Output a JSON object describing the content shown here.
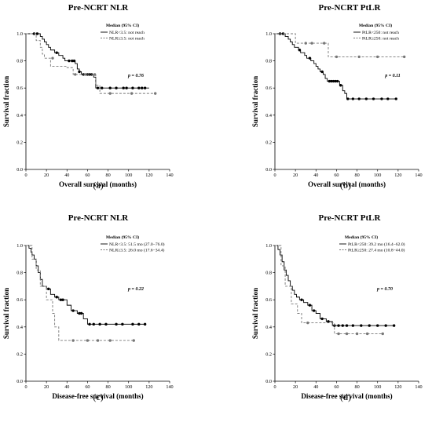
{
  "chart_data": [
    {
      "type": "line",
      "subtype": "kaplan-meier",
      "title": "Pre-NCRT NLR",
      "xlabel": "Overall survival (months)",
      "ylabel": "Survival fraction",
      "xlim": [
        0,
        140
      ],
      "ylim": [
        0,
        1.0
      ],
      "xticks": [
        "0",
        "20",
        "40",
        "60",
        "80",
        "100",
        "120",
        "140"
      ],
      "yticks": [
        "0.0",
        "0.2",
        "0.4",
        "0.6",
        "0.8",
        "1.0"
      ],
      "legend_title": "Median (95% CI)",
      "legend_position": "top-right",
      "p_value": "p = 0.76",
      "panel_label": "(a)",
      "grid": false,
      "series": [
        {
          "name": "NLR<3.5: not reach",
          "style": "solid",
          "color": "#000000",
          "steps": [
            [
              0,
              1.0
            ],
            [
              14,
              0.98
            ],
            [
              16,
              0.96
            ],
            [
              18,
              0.94
            ],
            [
              20,
              0.92
            ],
            [
              22,
              0.9
            ],
            [
              24,
              0.88
            ],
            [
              28,
              0.86
            ],
            [
              32,
              0.84
            ],
            [
              36,
              0.82
            ],
            [
              38,
              0.8
            ],
            [
              48,
              0.78
            ],
            [
              50,
              0.74
            ],
            [
              52,
              0.72
            ],
            [
              54,
              0.7
            ],
            [
              66,
              0.68
            ],
            [
              68,
              0.6
            ],
            [
              120,
              0.6
            ]
          ],
          "censored": [
            [
              8,
              1.0
            ],
            [
              11,
              1.0
            ],
            [
              30,
              0.86
            ],
            [
              42,
              0.8
            ],
            [
              45,
              0.8
            ],
            [
              47,
              0.8
            ],
            [
              52,
              0.72
            ],
            [
              56,
              0.7
            ],
            [
              60,
              0.7
            ],
            [
              62,
              0.7
            ],
            [
              64,
              0.7
            ],
            [
              70,
              0.6
            ],
            [
              74,
              0.6
            ],
            [
              82,
              0.6
            ],
            [
              88,
              0.6
            ],
            [
              95,
              0.6
            ],
            [
              98,
              0.6
            ],
            [
              104,
              0.6
            ],
            [
              110,
              0.6
            ],
            [
              113,
              0.6
            ],
            [
              116,
              0.6
            ]
          ]
        },
        {
          "name": "NLR≥3.5: not reach",
          "style": "dashed",
          "color": "#777777",
          "steps": [
            [
              0,
              1.0
            ],
            [
              10,
              0.95
            ],
            [
              14,
              0.9
            ],
            [
              16,
              0.85
            ],
            [
              18,
              0.82
            ],
            [
              24,
              0.76
            ],
            [
              32,
              0.76
            ],
            [
              40,
              0.75
            ],
            [
              46,
              0.7
            ],
            [
              60,
              0.7
            ],
            [
              68,
              0.62
            ],
            [
              72,
              0.56
            ],
            [
              126,
              0.56
            ]
          ],
          "censored": [
            [
              26,
              0.82
            ],
            [
              48,
              0.7
            ],
            [
              58,
              0.7
            ],
            [
              67,
              0.7
            ],
            [
              82,
              0.56
            ],
            [
              103,
              0.56
            ],
            [
              126,
              0.56
            ]
          ]
        }
      ]
    },
    {
      "type": "line",
      "subtype": "kaplan-meier",
      "title": "Pre-NCRT PtLR",
      "xlabel": "Overall survival (months)",
      "ylabel": "Survival fraction",
      "xlim": [
        0,
        140
      ],
      "ylim": [
        0,
        1.0
      ],
      "xticks": [
        "0",
        "20",
        "40",
        "60",
        "80",
        "100",
        "120",
        "140"
      ],
      "yticks": [
        "0.0",
        "0.2",
        "0.4",
        "0.6",
        "0.8",
        "1.0"
      ],
      "legend_title": "Median (95% CI)",
      "legend_position": "top-right",
      "p_value": "p = 0.11",
      "panel_label": "(b)",
      "grid": false,
      "series": [
        {
          "name": "PtLR<250: not reach",
          "style": "solid",
          "color": "#000000",
          "steps": [
            [
              0,
              1.0
            ],
            [
              10,
              0.98
            ],
            [
              13,
              0.96
            ],
            [
              15,
              0.94
            ],
            [
              17,
              0.92
            ],
            [
              19,
              0.9
            ],
            [
              23,
              0.88
            ],
            [
              25,
              0.86
            ],
            [
              29,
              0.84
            ],
            [
              31,
              0.82
            ],
            [
              35,
              0.8
            ],
            [
              38,
              0.78
            ],
            [
              40,
              0.76
            ],
            [
              42,
              0.74
            ],
            [
              44,
              0.72
            ],
            [
              47,
              0.7
            ],
            [
              49,
              0.67
            ],
            [
              51,
              0.65
            ],
            [
              63,
              0.62
            ],
            [
              66,
              0.58
            ],
            [
              68,
              0.56
            ],
            [
              70,
              0.52
            ],
            [
              118,
              0.52
            ]
          ],
          "censored": [
            [
              5,
              1.0
            ],
            [
              8,
              1.0
            ],
            [
              24,
              0.88
            ],
            [
              34,
              0.82
            ],
            [
              46,
              0.72
            ],
            [
              53,
              0.65
            ],
            [
              55,
              0.65
            ],
            [
              57,
              0.65
            ],
            [
              59,
              0.65
            ],
            [
              61,
              0.65
            ],
            [
              64,
              0.62
            ],
            [
              71,
              0.52
            ],
            [
              76,
              0.52
            ],
            [
              82,
              0.52
            ],
            [
              89,
              0.52
            ],
            [
              96,
              0.52
            ],
            [
              104,
              0.52
            ],
            [
              110,
              0.52
            ],
            [
              118,
              0.52
            ]
          ]
        },
        {
          "name": "PtLR≥250: not reach",
          "style": "dashed",
          "color": "#777777",
          "steps": [
            [
              0,
              1.0
            ],
            [
              20,
              0.93
            ],
            [
              52,
              0.83
            ],
            [
              126,
              0.83
            ]
          ],
          "censored": [
            [
              30,
              0.93
            ],
            [
              36,
              0.93
            ],
            [
              48,
              0.93
            ],
            [
              60,
              0.83
            ],
            [
              82,
              0.83
            ],
            [
              100,
              0.83
            ],
            [
              126,
              0.83
            ]
          ]
        }
      ]
    },
    {
      "type": "line",
      "subtype": "kaplan-meier",
      "title": "Pre-NCRT NLR",
      "xlabel": "Disease-free survival (months)",
      "ylabel": "Survival fraction",
      "xlim": [
        0,
        140
      ],
      "ylim": [
        0,
        1.0
      ],
      "xticks": [
        "0",
        "20",
        "40",
        "60",
        "80",
        "100",
        "120",
        "140"
      ],
      "yticks": [
        "0.0",
        "0.2",
        "0.4",
        "0.6",
        "0.8",
        "1.0"
      ],
      "legend_title": "Median (95% CI)",
      "legend_position": "top-right",
      "p_value": "p = 0.22",
      "panel_label": "(c)",
      "grid": false,
      "series": [
        {
          "name": "NLR<3.5: 51.5 mo (27.0−76.0)",
          "style": "solid",
          "color": "#000000",
          "steps": [
            [
              0,
              1.0
            ],
            [
              3,
              0.98
            ],
            [
              5,
              0.95
            ],
            [
              6,
              0.93
            ],
            [
              8,
              0.9
            ],
            [
              10,
              0.85
            ],
            [
              12,
              0.8
            ],
            [
              14,
              0.75
            ],
            [
              16,
              0.7
            ],
            [
              20,
              0.68
            ],
            [
              24,
              0.64
            ],
            [
              28,
              0.62
            ],
            [
              32,
              0.6
            ],
            [
              40,
              0.56
            ],
            [
              44,
              0.52
            ],
            [
              50,
              0.5
            ],
            [
              56,
              0.46
            ],
            [
              60,
              0.42
            ],
            [
              116,
              0.42
            ]
          ],
          "censored": [
            [
              22,
              0.68
            ],
            [
              30,
              0.62
            ],
            [
              34,
              0.6
            ],
            [
              36,
              0.6
            ],
            [
              46,
              0.52
            ],
            [
              52,
              0.5
            ],
            [
              54,
              0.5
            ],
            [
              62,
              0.42
            ],
            [
              66,
              0.42
            ],
            [
              72,
              0.42
            ],
            [
              78,
              0.42
            ],
            [
              88,
              0.42
            ],
            [
              94,
              0.42
            ],
            [
              104,
              0.42
            ],
            [
              110,
              0.42
            ],
            [
              116,
              0.42
            ]
          ]
        },
        {
          "name": "NLR≥3.5: 26.0 mo (17.6−34.4)",
          "style": "dashed",
          "color": "#777777",
          "steps": [
            [
              0,
              1.0
            ],
            [
              6,
              0.9
            ],
            [
              10,
              0.82
            ],
            [
              14,
              0.7
            ],
            [
              20,
              0.6
            ],
            [
              26,
              0.5
            ],
            [
              28,
              0.4
            ],
            [
              32,
              0.3
            ],
            [
              105,
              0.3
            ]
          ],
          "censored": [
            [
              46,
              0.3
            ],
            [
              60,
              0.3
            ],
            [
              70,
              0.3
            ],
            [
              82,
              0.3
            ],
            [
              105,
              0.3
            ]
          ]
        }
      ]
    },
    {
      "type": "line",
      "subtype": "kaplan-meier",
      "title": "Pre-NCRT PtLR",
      "xlabel": "Disease-free survival (months)",
      "ylabel": "Survival fraction",
      "xlim": [
        0,
        140
      ],
      "ylim": [
        0,
        1.0
      ],
      "xticks": [
        "0",
        "20",
        "40",
        "60",
        "80",
        "100",
        "120",
        "140"
      ],
      "yticks": [
        "0.0",
        "0.2",
        "0.4",
        "0.6",
        "0.8",
        "1.0"
      ],
      "legend_title": "Median (95% CI)",
      "legend_position": "top-right",
      "p_value": "p = 0.70",
      "panel_label": "(d)",
      "grid": false,
      "series": [
        {
          "name": "PtLR<250: 39.2 mo (16.4−62.0)",
          "style": "solid",
          "color": "#000000",
          "steps": [
            [
              0,
              1.0
            ],
            [
              3,
              0.97
            ],
            [
              5,
              0.93
            ],
            [
              7,
              0.88
            ],
            [
              9,
              0.82
            ],
            [
              11,
              0.78
            ],
            [
              13,
              0.74
            ],
            [
              15,
              0.7
            ],
            [
              17,
              0.67
            ],
            [
              19,
              0.64
            ],
            [
              21,
              0.62
            ],
            [
              24,
              0.6
            ],
            [
              28,
              0.58
            ],
            [
              32,
              0.56
            ],
            [
              36,
              0.52
            ],
            [
              40,
              0.5
            ],
            [
              44,
              0.46
            ],
            [
              50,
              0.44
            ],
            [
              56,
              0.41
            ],
            [
              116,
              0.41
            ]
          ],
          "censored": [
            [
              26,
              0.6
            ],
            [
              34,
              0.56
            ],
            [
              38,
              0.52
            ],
            [
              46,
              0.46
            ],
            [
              52,
              0.44
            ],
            [
              58,
              0.41
            ],
            [
              62,
              0.41
            ],
            [
              66,
              0.41
            ],
            [
              70,
              0.41
            ],
            [
              76,
              0.41
            ],
            [
              84,
              0.41
            ],
            [
              92,
              0.41
            ],
            [
              100,
              0.41
            ],
            [
              108,
              0.41
            ],
            [
              116,
              0.41
            ]
          ]
        },
        {
          "name": "PtLR≥250: 27.4 mo (10.8−44.0)",
          "style": "dashed",
          "color": "#777777",
          "steps": [
            [
              0,
              1.0
            ],
            [
              6,
              0.85
            ],
            [
              10,
              0.7
            ],
            [
              16,
              0.57
            ],
            [
              22,
              0.5
            ],
            [
              26,
              0.43
            ],
            [
              48,
              0.43
            ],
            [
              58,
              0.35
            ],
            [
              105,
              0.35
            ]
          ],
          "censored": [
            [
              32,
              0.43
            ],
            [
              62,
              0.35
            ],
            [
              70,
              0.35
            ],
            [
              80,
              0.35
            ],
            [
              90,
              0.35
            ],
            [
              105,
              0.35
            ]
          ]
        }
      ]
    }
  ]
}
